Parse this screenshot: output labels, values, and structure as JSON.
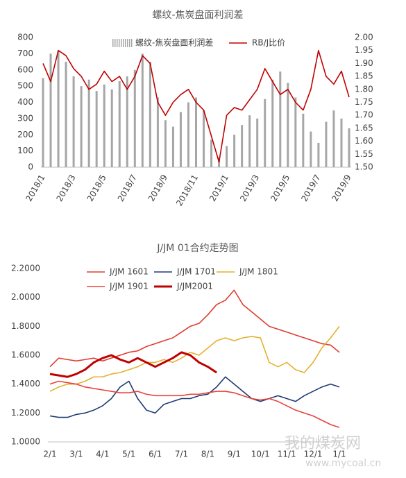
{
  "chart_data": [
    {
      "type": "bar",
      "title": "螺纹-焦炭盘面利润差",
      "categories": [
        "2018/1",
        null,
        null,
        null,
        "2018/3",
        null,
        null,
        null,
        "2018/5",
        null,
        null,
        null,
        "2018/7",
        null,
        null,
        null,
        "2018/9",
        null,
        null,
        null,
        "2018/11",
        null,
        null,
        null,
        "2019/1",
        null,
        null,
        null,
        "2019/3",
        null,
        null,
        null,
        "2019/5",
        null,
        null,
        null,
        "2019/7",
        null,
        null,
        null,
        "2019/9"
      ],
      "series": [
        {
          "name": "螺纹-焦炭盘面利润差",
          "color": "#a6a6a6",
          "values": [
            550,
            700,
            720,
            650,
            560,
            500,
            540,
            470,
            510,
            480,
            530,
            560,
            600,
            700,
            650,
            430,
            290,
            250,
            340,
            400,
            430,
            350,
            170,
            60,
            130,
            200,
            260,
            320,
            300,
            420,
            540,
            590,
            520,
            430,
            330,
            220,
            150,
            280,
            350,
            300,
            240
          ]
        },
        {
          "name": "RB/J比价",
          "color": "#c00000",
          "type": "line",
          "axis": "y2",
          "values": [
            1.9,
            1.83,
            1.95,
            1.93,
            1.88,
            1.85,
            1.8,
            1.82,
            1.87,
            1.83,
            1.85,
            1.8,
            1.85,
            1.93,
            1.9,
            1.75,
            1.7,
            1.75,
            1.78,
            1.8,
            1.75,
            1.72,
            1.62,
            1.52,
            1.7,
            1.73,
            1.72,
            1.76,
            1.8,
            1.88,
            1.83,
            1.78,
            1.8,
            1.75,
            1.72,
            1.8,
            1.95,
            1.85,
            1.82,
            1.87,
            1.77
          ]
        }
      ],
      "ylim": [
        0,
        800
      ],
      "yticks": [
        0,
        100,
        200,
        300,
        400,
        500,
        600,
        700,
        800
      ],
      "y2lim": [
        1.5,
        2.0
      ],
      "y2ticks": [
        {
          "value": 1.5,
          "label": "1.50"
        },
        {
          "value": 1.55,
          "label": "1.55"
        },
        {
          "value": 1.6,
          "label": "1.60"
        },
        {
          "value": 1.65,
          "label": "1.65"
        },
        {
          "value": 1.7,
          "label": "1.70"
        },
        {
          "value": 1.75,
          "label": "1.75"
        },
        {
          "value": 1.8,
          "label": "1.80"
        },
        {
          "value": 1.85,
          "label": "1.85"
        },
        {
          "value": 1.9,
          "label": "1.90"
        },
        {
          "value": 1.95,
          "label": "1.95"
        },
        {
          "value": 2.0,
          "label": "2.00"
        }
      ],
      "legend": "top"
    },
    {
      "type": "line",
      "title": "J/JM 01合约走势图",
      "categories": [
        "2/1",
        null,
        null,
        "3/1",
        null,
        null,
        "4/1",
        null,
        null,
        "5/1",
        null,
        null,
        "6/1",
        null,
        null,
        "7/1",
        null,
        null,
        "8/1",
        null,
        null,
        "9/1",
        null,
        null,
        "10/1",
        null,
        null,
        "11/1",
        null,
        null,
        "12/1",
        null,
        null,
        "1/1"
      ],
      "series": [
        {
          "name": "J/JM 1601",
          "color": "#e03c31",
          "values": [
            1.52,
            1.58,
            1.57,
            1.56,
            1.57,
            1.58,
            1.56,
            1.58,
            1.6,
            1.62,
            1.63,
            1.66,
            1.68,
            1.7,
            1.72,
            1.76,
            1.8,
            1.82,
            1.88,
            1.95,
            1.98,
            2.05,
            1.95,
            1.9,
            1.85,
            1.8,
            1.78,
            1.76,
            1.74,
            1.72,
            1.7,
            1.68,
            1.67,
            1.62
          ]
        },
        {
          "name": "J/JM 1701",
          "color": "#1f3b73",
          "values": [
            1.18,
            1.17,
            1.17,
            1.19,
            1.2,
            1.22,
            1.25,
            1.3,
            1.38,
            1.42,
            1.3,
            1.22,
            1.2,
            1.26,
            1.28,
            1.3,
            1.3,
            1.32,
            1.33,
            1.38,
            1.45,
            1.4,
            1.35,
            1.3,
            1.28,
            1.3,
            1.32,
            1.3,
            1.28,
            1.32,
            1.35,
            1.38,
            1.4,
            1.38
          ]
        },
        {
          "name": "J/JM 1801",
          "color": "#e3b12b",
          "values": [
            1.35,
            1.38,
            1.4,
            1.4,
            1.42,
            1.45,
            1.45,
            1.47,
            1.48,
            1.5,
            1.52,
            1.55,
            1.55,
            1.57,
            1.55,
            1.58,
            1.62,
            1.6,
            1.65,
            1.7,
            1.72,
            1.7,
            1.72,
            1.73,
            1.72,
            1.55,
            1.52,
            1.55,
            1.5,
            1.48,
            1.55,
            1.65,
            1.72,
            1.8
          ]
        },
        {
          "name": "J/JM 1901",
          "color": "#e8423a",
          "values": [
            1.4,
            1.42,
            1.41,
            1.4,
            1.38,
            1.37,
            1.36,
            1.35,
            1.34,
            1.34,
            1.35,
            1.33,
            1.32,
            1.32,
            1.32,
            1.32,
            1.33,
            1.33,
            1.34,
            1.35,
            1.35,
            1.34,
            1.32,
            1.3,
            1.29,
            1.3,
            1.28,
            1.25,
            1.22,
            1.2,
            1.18,
            1.15,
            1.12,
            1.1
          ]
        },
        {
          "name": "J/JM2001",
          "color": "#c00000",
          "width": 3,
          "values": [
            1.47,
            1.46,
            1.45,
            1.47,
            1.5,
            1.55,
            1.58,
            1.6,
            1.57,
            1.55,
            1.58,
            1.55,
            1.52,
            1.55,
            1.58,
            1.62,
            1.6,
            1.55,
            1.52,
            1.48,
            null,
            null,
            null,
            null,
            null,
            null,
            null,
            null,
            null,
            null,
            null,
            null,
            null,
            null
          ]
        }
      ],
      "ylim": [
        1.0,
        2.2
      ],
      "yticks": [
        {
          "value": 1.0,
          "label": "1.0000"
        },
        {
          "value": 1.2,
          "label": "1.2000"
        },
        {
          "value": 1.4,
          "label": "1.4000"
        },
        {
          "value": 1.6,
          "label": "1.6000"
        },
        {
          "value": 1.8,
          "label": "1.8000"
        },
        {
          "value": 2.0,
          "label": "2.0000"
        },
        {
          "value": 2.2,
          "label": "2.2000"
        }
      ],
      "legend": "top"
    }
  ],
  "watermark": {
    "text": "我的煤炭网",
    "url": "www.mycoal.cn"
  }
}
